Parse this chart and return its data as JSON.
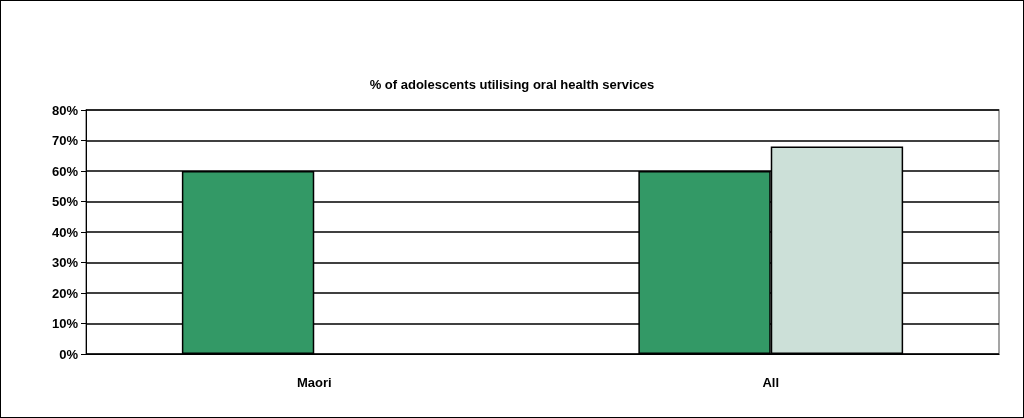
{
  "chart_data": {
    "type": "bar",
    "title": "% of adolescents utilising oral health services",
    "categories": [
      "Maori",
      "All"
    ],
    "series": [
      {
        "color": "#339966",
        "values": [
          60,
          60
        ]
      },
      {
        "color": "#cce0d8",
        "values": [
          null,
          68
        ]
      }
    ],
    "ylim": [
      0,
      80
    ],
    "yticks": [
      {
        "value": 0,
        "label": "0%"
      },
      {
        "value": 10,
        "label": "10%"
      },
      {
        "value": 20,
        "label": "20%"
      },
      {
        "value": 30,
        "label": "30%"
      },
      {
        "value": 40,
        "label": "40%"
      },
      {
        "value": 50,
        "label": "50%"
      },
      {
        "value": 60,
        "label": "60%"
      },
      {
        "value": 70,
        "label": "70%"
      },
      {
        "value": 80,
        "label": "80%"
      }
    ],
    "grid": "y"
  }
}
